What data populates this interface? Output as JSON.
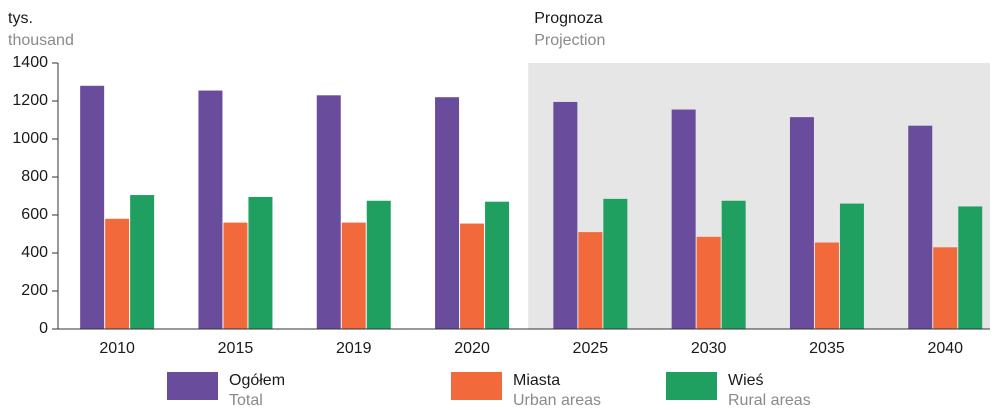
{
  "chart_data": {
    "type": "bar",
    "unit_label": "tys.",
    "unit_label_en": "thousand",
    "projection": {
      "label": "Prognoza",
      "label_en": "Projection",
      "from_index": 4,
      "color": "#e6e6e6"
    },
    "categories": [
      "2010",
      "2015",
      "2019",
      "2020",
      "2025",
      "2030",
      "2035",
      "2040"
    ],
    "series": [
      {
        "name": "Ogółem",
        "name_en": "Total",
        "color": "#6a4c9c",
        "values": [
          1280,
          1255,
          1230,
          1220,
          1195,
          1155,
          1115,
          1070
        ]
      },
      {
        "name": "Miasta",
        "name_en": "Urban areas",
        "color": "#f26a3c",
        "values": [
          580,
          560,
          560,
          555,
          510,
          485,
          455,
          430
        ]
      },
      {
        "name": "Wieś",
        "name_en": "Rural areas",
        "color": "#20a060",
        "values": [
          705,
          695,
          675,
          670,
          685,
          675,
          660,
          645
        ]
      }
    ],
    "ylim": [
      0,
      1400
    ],
    "yticks": [
      0,
      200,
      400,
      600,
      800,
      1000,
      1200,
      1400
    ],
    "grid": false
  }
}
